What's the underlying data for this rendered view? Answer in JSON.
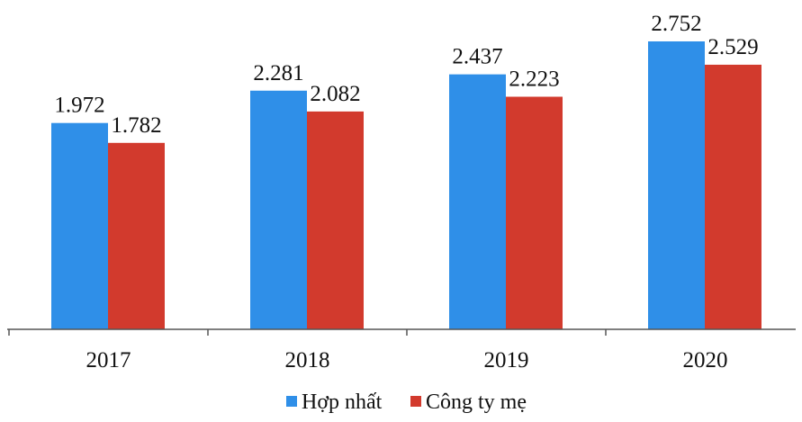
{
  "chart_data": {
    "type": "bar",
    "title": "",
    "xlabel": "",
    "ylabel": "",
    "categories": [
      "2017",
      "2018",
      "2019",
      "2020"
    ],
    "series": [
      {
        "name": "Hợp nhất",
        "color": "#2f8fe8",
        "values": [
          1.972,
          2.281,
          2.437,
          2.752
        ],
        "labels": [
          "1.972",
          "2.281",
          "2.437",
          "2.752"
        ]
      },
      {
        "name": "Công ty mẹ",
        "color": "#d23a2d",
        "values": [
          1.782,
          2.082,
          2.223,
          2.529
        ],
        "labels": [
          "1.782",
          "2.082",
          "2.223",
          "2.529"
        ]
      }
    ],
    "ylim": [
      0,
      2.85
    ],
    "grid": false,
    "legend": "bottom-center"
  }
}
